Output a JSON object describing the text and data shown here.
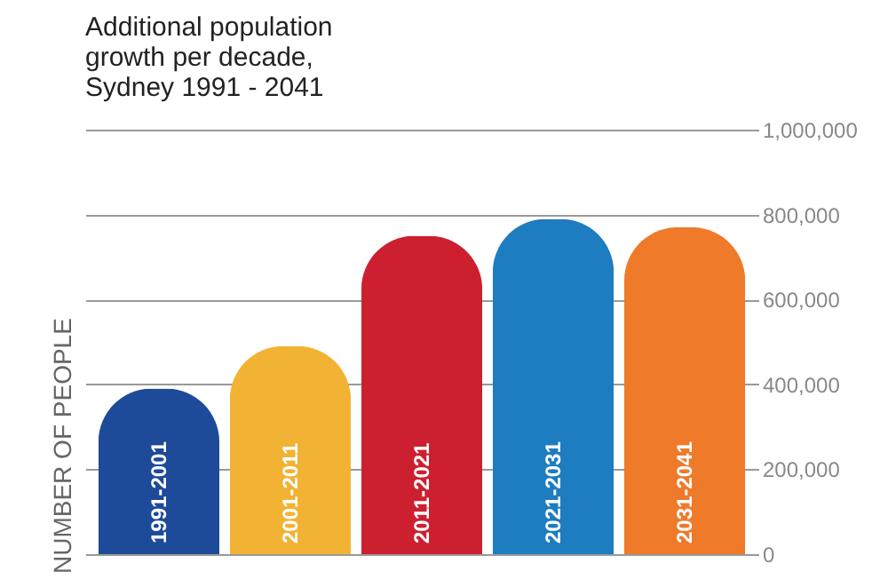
{
  "chart_data": {
    "type": "bar",
    "title": [
      "Additional population",
      "growth per decade,",
      "Sydney 1991 - 2041"
    ],
    "ylabel": "NUMBER OF PEOPLE",
    "categories": [
      "1991-2001",
      "2001-2011",
      "2011-2021",
      "2021-2031",
      "2031-2041"
    ],
    "values": [
      390000,
      490000,
      750000,
      790000,
      770000
    ],
    "colors": [
      "#1e4a9a",
      "#f2b233",
      "#cc2030",
      "#1e7cc0",
      "#ee7a2a"
    ],
    "ylim": [
      0,
      1000000
    ],
    "yticks": [
      {
        "value": 0,
        "label": "0"
      },
      {
        "value": 200000,
        "label": "200,000"
      },
      {
        "value": 400000,
        "label": "400,000"
      },
      {
        "value": 600000,
        "label": "600,000"
      },
      {
        "value": 800000,
        "label": "800,000"
      },
      {
        "value": 1000000,
        "label": "1,000,000"
      }
    ],
    "grid": "y"
  }
}
